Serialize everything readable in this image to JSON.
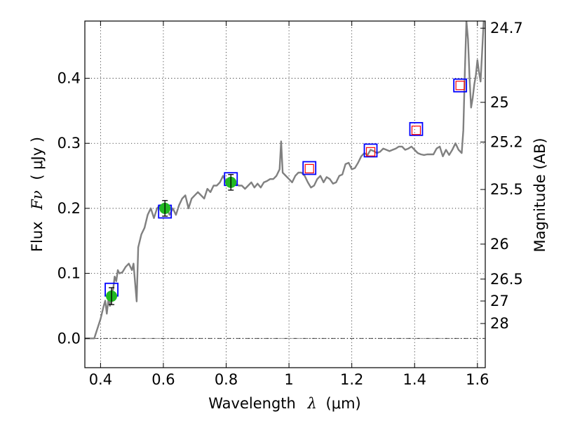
{
  "chart_data": {
    "type": "scatter",
    "xlabel": {
      "prefix": "Wavelength",
      "symbol": "λ",
      "unit": "(μm)"
    },
    "ylabel": {
      "prefix": "Flux",
      "symbol": "Fν",
      "unit": "( μJy )"
    },
    "y2label": "Magnitude (AB)",
    "xlim": [
      0.35,
      1.625
    ],
    "ylim": [
      -0.045,
      0.488
    ],
    "x_ticks": [
      0.4,
      0.6,
      0.8,
      1.0,
      1.2,
      1.4,
      1.6
    ],
    "x_tick_labels": [
      "0.4",
      "0.6",
      "0.8",
      "1",
      "1.2",
      "1.4",
      "1.6"
    ],
    "y_ticks": [
      0.0,
      0.1,
      0.2,
      0.3,
      0.4
    ],
    "y_tick_labels": [
      "0.0",
      "0.1",
      "0.2",
      "0.3",
      "0.4"
    ],
    "mag_ticks": [
      {
        "label": "24.7",
        "flux": 0.477
      },
      {
        "label": "25",
        "flux": 0.363
      },
      {
        "label": "25.2",
        "flux": 0.302
      },
      {
        "label": "25.5",
        "flux": 0.229
      },
      {
        "label": "26",
        "flux": 0.145
      },
      {
        "label": "26.5",
        "flux": 0.0912
      },
      {
        "label": "27",
        "flux": 0.0575
      },
      {
        "label": "28",
        "flux": 0.0229
      }
    ],
    "zero_line": 0.0,
    "series": [
      {
        "name": "model spectrum",
        "style": "line",
        "color": "#808080",
        "points": [
          [
            0.35,
            0.0
          ],
          [
            0.37,
            0.0
          ],
          [
            0.38,
            0.0
          ],
          [
            0.39,
            0.015
          ],
          [
            0.4,
            0.03
          ],
          [
            0.41,
            0.05
          ],
          [
            0.415,
            0.058
          ],
          [
            0.42,
            0.038
          ],
          [
            0.425,
            0.06
          ],
          [
            0.43,
            0.05
          ],
          [
            0.435,
            0.072
          ],
          [
            0.44,
            0.075
          ],
          [
            0.445,
            0.095
          ],
          [
            0.45,
            0.088
          ],
          [
            0.455,
            0.105
          ],
          [
            0.46,
            0.1
          ],
          [
            0.47,
            0.102
          ],
          [
            0.48,
            0.11
          ],
          [
            0.49,
            0.115
          ],
          [
            0.5,
            0.105
          ],
          [
            0.505,
            0.115
          ],
          [
            0.51,
            0.085
          ],
          [
            0.515,
            0.057
          ],
          [
            0.52,
            0.14
          ],
          [
            0.53,
            0.16
          ],
          [
            0.54,
            0.17
          ],
          [
            0.55,
            0.19
          ],
          [
            0.56,
            0.2
          ],
          [
            0.57,
            0.185
          ],
          [
            0.58,
            0.2
          ],
          [
            0.59,
            0.205
          ],
          [
            0.6,
            0.2
          ],
          [
            0.61,
            0.2
          ],
          [
            0.62,
            0.19
          ],
          [
            0.63,
            0.2
          ],
          [
            0.64,
            0.19
          ],
          [
            0.65,
            0.205
          ],
          [
            0.66,
            0.215
          ],
          [
            0.67,
            0.22
          ],
          [
            0.68,
            0.2
          ],
          [
            0.69,
            0.215
          ],
          [
            0.7,
            0.22
          ],
          [
            0.71,
            0.225
          ],
          [
            0.72,
            0.22
          ],
          [
            0.73,
            0.215
          ],
          [
            0.74,
            0.23
          ],
          [
            0.75,
            0.225
          ],
          [
            0.76,
            0.235
          ],
          [
            0.77,
            0.235
          ],
          [
            0.78,
            0.24
          ],
          [
            0.79,
            0.25
          ],
          [
            0.8,
            0.24
          ],
          [
            0.81,
            0.245
          ],
          [
            0.82,
            0.235
          ],
          [
            0.83,
            0.238
          ],
          [
            0.84,
            0.235
          ],
          [
            0.85,
            0.235
          ],
          [
            0.86,
            0.23
          ],
          [
            0.87,
            0.235
          ],
          [
            0.88,
            0.24
          ],
          [
            0.89,
            0.232
          ],
          [
            0.9,
            0.238
          ],
          [
            0.91,
            0.232
          ],
          [
            0.92,
            0.24
          ],
          [
            0.93,
            0.242
          ],
          [
            0.94,
            0.245
          ],
          [
            0.95,
            0.245
          ],
          [
            0.96,
            0.25
          ],
          [
            0.97,
            0.26
          ],
          [
            0.975,
            0.303
          ],
          [
            0.98,
            0.255
          ],
          [
            0.99,
            0.25
          ],
          [
            1.0,
            0.245
          ],
          [
            1.01,
            0.24
          ],
          [
            1.02,
            0.25
          ],
          [
            1.03,
            0.255
          ],
          [
            1.04,
            0.255
          ],
          [
            1.05,
            0.25
          ],
          [
            1.06,
            0.24
          ],
          [
            1.07,
            0.232
          ],
          [
            1.08,
            0.235
          ],
          [
            1.09,
            0.245
          ],
          [
            1.1,
            0.25
          ],
          [
            1.11,
            0.24
          ],
          [
            1.12,
            0.248
          ],
          [
            1.13,
            0.245
          ],
          [
            1.14,
            0.238
          ],
          [
            1.15,
            0.24
          ],
          [
            1.16,
            0.25
          ],
          [
            1.17,
            0.252
          ],
          [
            1.18,
            0.268
          ],
          [
            1.19,
            0.27
          ],
          [
            1.2,
            0.26
          ],
          [
            1.21,
            0.262
          ],
          [
            1.22,
            0.27
          ],
          [
            1.23,
            0.28
          ],
          [
            1.24,
            0.285
          ],
          [
            1.25,
            0.282
          ],
          [
            1.26,
            0.29
          ],
          [
            1.27,
            0.288
          ],
          [
            1.28,
            0.285
          ],
          [
            1.29,
            0.287
          ],
          [
            1.3,
            0.292
          ],
          [
            1.31,
            0.29
          ],
          [
            1.32,
            0.288
          ],
          [
            1.33,
            0.29
          ],
          [
            1.34,
            0.292
          ],
          [
            1.35,
            0.295
          ],
          [
            1.36,
            0.295
          ],
          [
            1.37,
            0.29
          ],
          [
            1.38,
            0.292
          ],
          [
            1.39,
            0.295
          ],
          [
            1.4,
            0.29
          ],
          [
            1.41,
            0.285
          ],
          [
            1.42,
            0.283
          ],
          [
            1.43,
            0.282
          ],
          [
            1.44,
            0.283
          ],
          [
            1.45,
            0.283
          ],
          [
            1.46,
            0.283
          ],
          [
            1.47,
            0.292
          ],
          [
            1.48,
            0.295
          ],
          [
            1.49,
            0.28
          ],
          [
            1.5,
            0.29
          ],
          [
            1.51,
            0.282
          ],
          [
            1.52,
            0.29
          ],
          [
            1.53,
            0.3
          ],
          [
            1.54,
            0.29
          ],
          [
            1.55,
            0.285
          ],
          [
            1.555,
            0.32
          ],
          [
            1.56,
            0.41
          ],
          [
            1.565,
            0.488
          ],
          [
            1.57,
            0.46
          ],
          [
            1.575,
            0.4
          ],
          [
            1.58,
            0.355
          ],
          [
            1.585,
            0.37
          ],
          [
            1.59,
            0.39
          ],
          [
            1.595,
            0.405
          ],
          [
            1.6,
            0.428
          ],
          [
            1.605,
            0.41
          ],
          [
            1.61,
            0.395
          ],
          [
            1.615,
            0.44
          ],
          [
            1.62,
            0.488
          ]
        ]
      },
      {
        "name": "model photometry (blue squares)",
        "style": "square-open",
        "color": "#0000ff",
        "points": [
          [
            0.435,
            0.075
          ],
          [
            0.605,
            0.195
          ],
          [
            0.815,
            0.245
          ],
          [
            1.065,
            0.262
          ],
          [
            1.26,
            0.289
          ],
          [
            1.405,
            0.322
          ],
          [
            1.545,
            0.389
          ]
        ]
      },
      {
        "name": "observed photometry (red squares)",
        "style": "square-open",
        "color": "#ff0000",
        "points": [
          [
            1.065,
            0.261
          ],
          [
            1.26,
            0.287
          ],
          [
            1.405,
            0.32
          ],
          [
            1.545,
            0.389
          ]
        ]
      },
      {
        "name": "observed photometry (green circles)",
        "style": "circle-filled",
        "color": "#22b822",
        "points": [
          {
            "x": 0.435,
            "y": 0.065,
            "err": 0.013
          },
          {
            "x": 0.605,
            "y": 0.2,
            "err": 0.012
          },
          {
            "x": 0.815,
            "y": 0.24,
            "err": 0.012
          }
        ]
      }
    ]
  }
}
